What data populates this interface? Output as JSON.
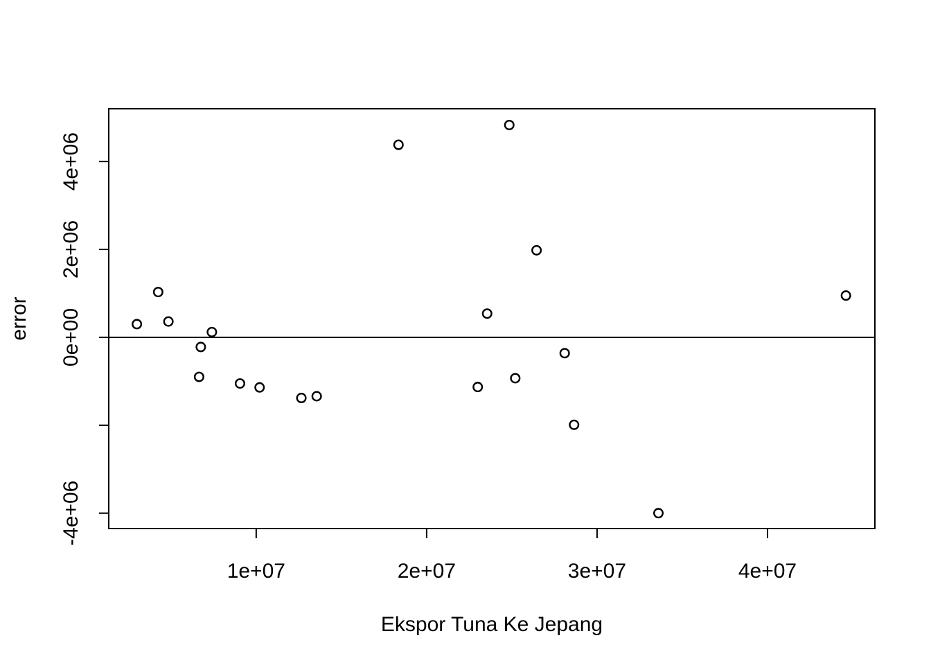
{
  "chart_data": {
    "type": "scatter",
    "title": "",
    "xlabel": "Ekspor Tuna Ke Jepang",
    "ylabel": "error",
    "xlim": [
      1350000,
      46300000
    ],
    "ylim": [
      -4350000,
      5200000
    ],
    "x_ticks": [
      10000000,
      20000000,
      30000000,
      40000000
    ],
    "x_tick_labels": [
      "1e+07",
      "2e+07",
      "3e+07",
      "4e+07"
    ],
    "y_ticks": [
      -4000000,
      -2000000,
      0,
      2000000,
      4000000
    ],
    "y_tick_labels": [
      "-4e+06",
      "",
      "0e+00",
      "2e+06",
      "4e+06"
    ],
    "reference_line_y": 0,
    "grid": false,
    "points": [
      {
        "x": 3000000,
        "y": 300000
      },
      {
        "x": 4250000,
        "y": 1030000
      },
      {
        "x": 4850000,
        "y": 360000
      },
      {
        "x": 6650000,
        "y": -900000
      },
      {
        "x": 6750000,
        "y": -220000
      },
      {
        "x": 7400000,
        "y": 120000
      },
      {
        "x": 9050000,
        "y": -1050000
      },
      {
        "x": 10200000,
        "y": -1140000
      },
      {
        "x": 12650000,
        "y": -1380000
      },
      {
        "x": 13550000,
        "y": -1340000
      },
      {
        "x": 18350000,
        "y": 4380000
      },
      {
        "x": 23000000,
        "y": -1130000
      },
      {
        "x": 23550000,
        "y": 540000
      },
      {
        "x": 24850000,
        "y": 4830000
      },
      {
        "x": 25200000,
        "y": -930000
      },
      {
        "x": 26450000,
        "y": 1980000
      },
      {
        "x": 28100000,
        "y": -360000
      },
      {
        "x": 28650000,
        "y": -1990000
      },
      {
        "x": 33600000,
        "y": -4000000
      },
      {
        "x": 44600000,
        "y": 950000
      }
    ]
  }
}
